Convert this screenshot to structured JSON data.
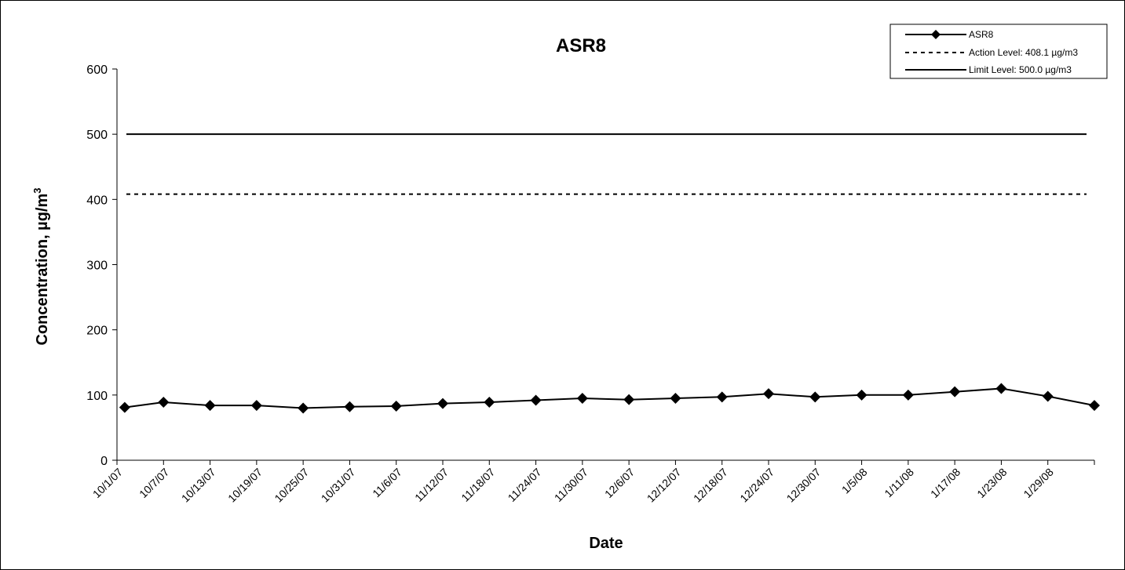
{
  "chart_data": {
    "type": "line",
    "title": "ASR8",
    "xlabel": "Date",
    "ylabel_main": "Concentration, µg/m",
    "ylabel_sup": "3",
    "ylim": [
      0,
      600
    ],
    "yticks": [
      0,
      100,
      200,
      300,
      400,
      500,
      600
    ],
    "xlim": [
      "2007-10-01",
      "2008-02-04"
    ],
    "xtick_labels": [
      "10/1/07",
      "10/7/07",
      "10/13/07",
      "10/19/07",
      "10/25/07",
      "10/31/07",
      "11/6/07",
      "11/12/07",
      "11/18/07",
      "11/24/07",
      "11/30/07",
      "12/6/07",
      "12/12/07",
      "12/18/07",
      "12/24/07",
      "12/30/07",
      "1/5/08",
      "1/11/08",
      "1/17/08",
      "1/23/08",
      "1/29/08"
    ],
    "xtick_dates": [
      "2007-10-01",
      "2007-10-07",
      "2007-10-13",
      "2007-10-19",
      "2007-10-25",
      "2007-10-31",
      "2007-11-06",
      "2007-11-12",
      "2007-11-18",
      "2007-11-24",
      "2007-11-30",
      "2007-12-06",
      "2007-12-12",
      "2007-12-18",
      "2007-12-24",
      "2007-12-30",
      "2008-01-05",
      "2008-01-11",
      "2008-01-17",
      "2008-01-23",
      "2008-01-29"
    ],
    "grid": false,
    "legend_position": "top-right",
    "series": [
      {
        "name": "ASR8",
        "style": "solid-diamond",
        "color": "#000000",
        "x": [
          "2007-10-02",
          "2007-10-07",
          "2007-10-13",
          "2007-10-19",
          "2007-10-25",
          "2007-10-31",
          "2007-11-06",
          "2007-11-12",
          "2007-11-18",
          "2007-11-24",
          "2007-11-30",
          "2007-12-06",
          "2007-12-12",
          "2007-12-18",
          "2007-12-24",
          "2007-12-30",
          "2008-01-05",
          "2008-01-11",
          "2008-01-17",
          "2008-01-23",
          "2008-01-29",
          "2008-02-04"
        ],
        "values": [
          81,
          89,
          84,
          84,
          80,
          82,
          83,
          87,
          89,
          92,
          95,
          93,
          95,
          97,
          102,
          97,
          100,
          100,
          105,
          110,
          98,
          84
        ]
      }
    ],
    "reference_lines": [
      {
        "name": "Action Level: 408.1 µg/m3",
        "value": 408.1,
        "style": "dashed",
        "color": "#000000"
      },
      {
        "name": "Limit Level: 500.0 µg/m3",
        "value": 500.0,
        "style": "solid",
        "color": "#000000"
      }
    ]
  }
}
